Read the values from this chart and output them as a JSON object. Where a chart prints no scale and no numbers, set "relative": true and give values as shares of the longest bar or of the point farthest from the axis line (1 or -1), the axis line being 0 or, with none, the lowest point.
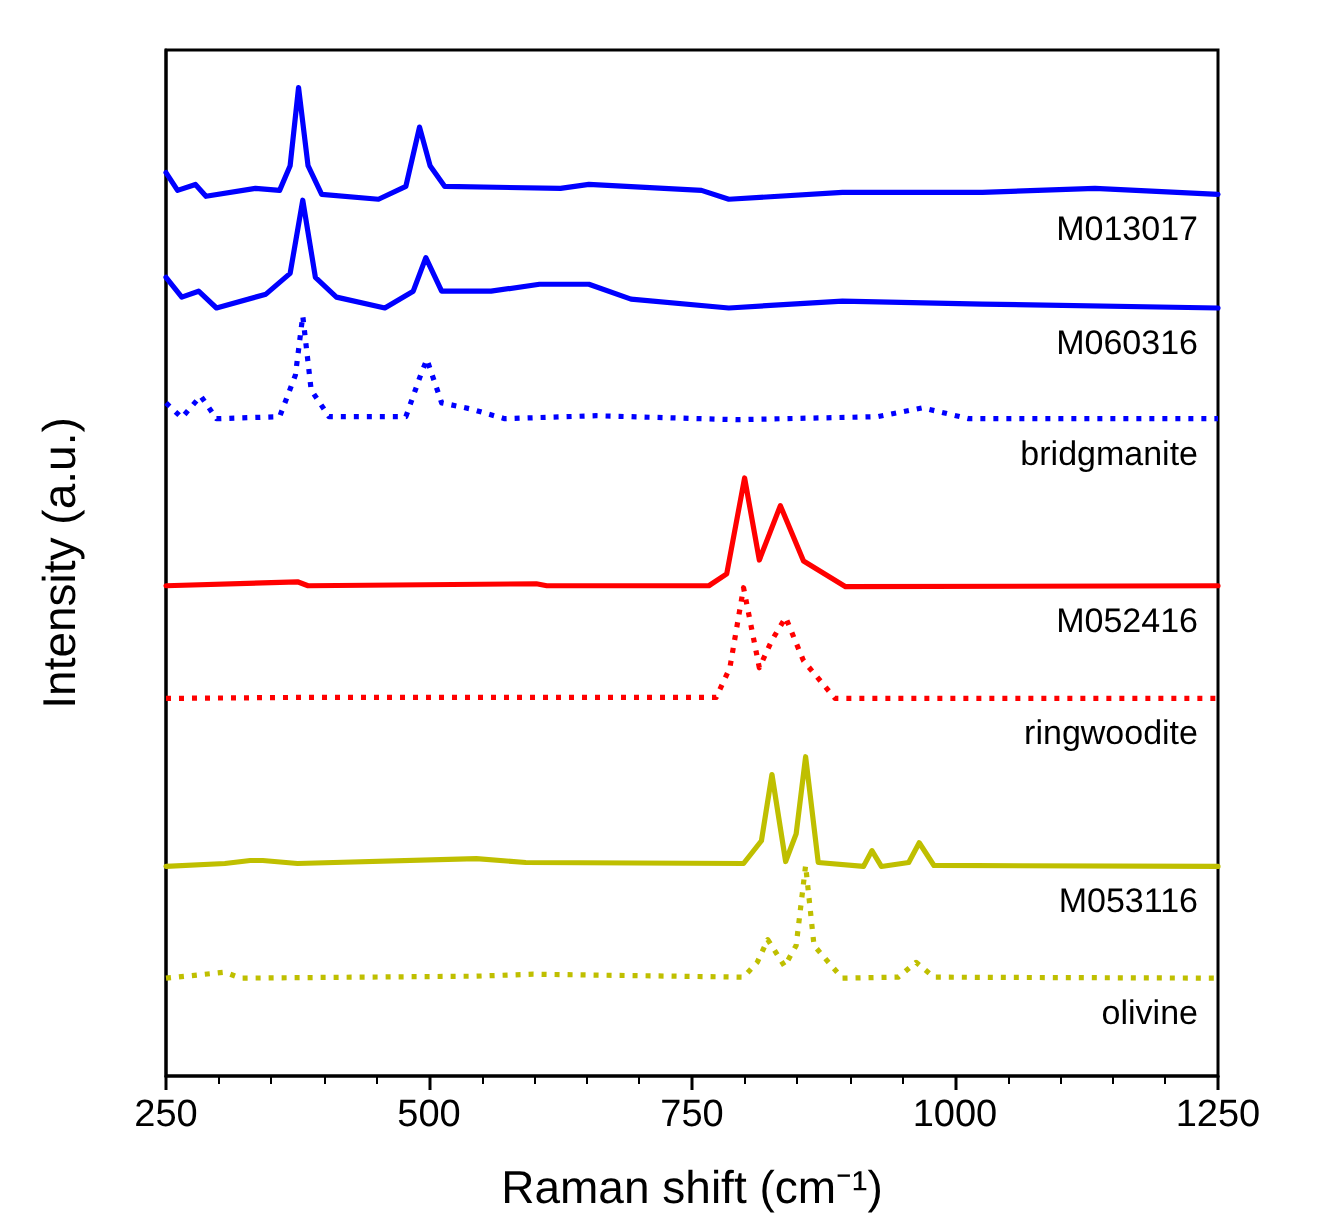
{
  "chart_data": {
    "type": "line",
    "relative": true,
    "xlabel": "Raman shift (cm⁻¹)",
    "ylabel": "Intensity (a.u.)",
    "xlim": [
      250,
      1250
    ],
    "xticks": [
      250,
      500,
      750,
      1000,
      1250
    ],
    "legend": false,
    "grid": false,
    "marker": "none",
    "tick_labels": "x",
    "series": [
      {
        "name": "M013017",
        "color": "#0000ff",
        "line_style": "solid",
        "x": [
          250,
          261,
          278,
          288,
          335,
          358,
          368,
          376,
          385,
          398,
          452,
          478,
          491,
          501,
          515,
          625,
          652,
          759,
          785,
          893,
          1026,
          1133,
          1250
        ],
        "values": [
          0.914,
          0.896,
          0.902,
          0.89,
          0.898,
          0.896,
          0.921,
          1,
          0.921,
          0.892,
          0.887,
          0.9,
          0.96,
          0.921,
          0.9,
          0.898,
          0.902,
          0.896,
          0.887,
          0.894,
          0.894,
          0.898,
          0.892
        ]
      },
      {
        "name": "M060316",
        "color": "#0000ff",
        "line_style": "solid",
        "x": [
          250,
          265,
          281,
          298,
          345,
          368,
          380,
          392,
          412,
          458,
          485,
          497,
          512,
          559,
          605,
          652,
          692,
          785,
          893,
          1026,
          1250
        ],
        "values": [
          0.808,
          0.788,
          0.794,
          0.777,
          0.791,
          0.812,
          0.886,
          0.808,
          0.788,
          0.777,
          0.794,
          0.828,
          0.794,
          0.794,
          0.801,
          0.801,
          0.786,
          0.777,
          0.784,
          0.781,
          0.777
        ]
      },
      {
        "name": "bridgmanite",
        "color": "#0000ff",
        "line_style": "dotted",
        "x": [
          250,
          265,
          283,
          298,
          358,
          373,
          380,
          388,
          405,
          478,
          492,
          498,
          512,
          539,
          572,
          659,
          792,
          926,
          969,
          1013,
          1250
        ],
        "values": [
          0.681,
          0.666,
          0.688,
          0.665,
          0.667,
          0.709,
          0.769,
          0.694,
          0.667,
          0.667,
          0.709,
          0.725,
          0.681,
          0.675,
          0.665,
          0.668,
          0.664,
          0.667,
          0.676,
          0.665,
          0.665
        ]
      },
      {
        "name": "M052416",
        "color": "#ff0000",
        "line_style": "solid",
        "x": [
          250,
          375,
          385,
          602,
          612,
          766,
          783,
          800,
          814,
          834,
          856,
          896,
          1250
        ],
        "values": [
          0.496,
          0.5,
          0.496,
          0.498,
          0.496,
          0.496,
          0.508,
          0.605,
          0.522,
          0.577,
          0.521,
          0.495,
          0.496
        ]
      },
      {
        "name": "ringwoodite",
        "color": "#ff0000",
        "line_style": "dotted",
        "x": [
          250,
          372,
          773,
          786,
          799,
          814,
          826,
          839,
          856,
          886,
          1250
        ],
        "values": [
          0.382,
          0.383,
          0.383,
          0.413,
          0.494,
          0.413,
          0.441,
          0.464,
          0.42,
          0.382,
          0.382
        ]
      },
      {
        "name": "M053116",
        "color": "#bfbf00",
        "line_style": "solid",
        "x": [
          250,
          306,
          330,
          342,
          375,
          545,
          592,
          799,
          816,
          826,
          839,
          849,
          858,
          870,
          913,
          921,
          930,
          956,
          966,
          980,
          1250
        ],
        "values": [
          0.212,
          0.215,
          0.218,
          0.218,
          0.215,
          0.22,
          0.216,
          0.215,
          0.238,
          0.305,
          0.217,
          0.245,
          0.323,
          0.216,
          0.212,
          0.228,
          0.212,
          0.216,
          0.236,
          0.213,
          0.212
        ]
      },
      {
        "name": "olivine",
        "color": "#bfbf00",
        "line_style": "dotted",
        "x": [
          250,
          306,
          321,
          545,
          599,
          799,
          812,
          822,
          838,
          849,
          858,
          866,
          883,
          893,
          946,
          963,
          980,
          1250
        ],
        "values": [
          0.099,
          0.105,
          0.099,
          0.101,
          0.103,
          0.1,
          0.115,
          0.138,
          0.111,
          0.132,
          0.213,
          0.132,
          0.111,
          0.099,
          0.1,
          0.115,
          0.1,
          0.099
        ]
      }
    ]
  }
}
